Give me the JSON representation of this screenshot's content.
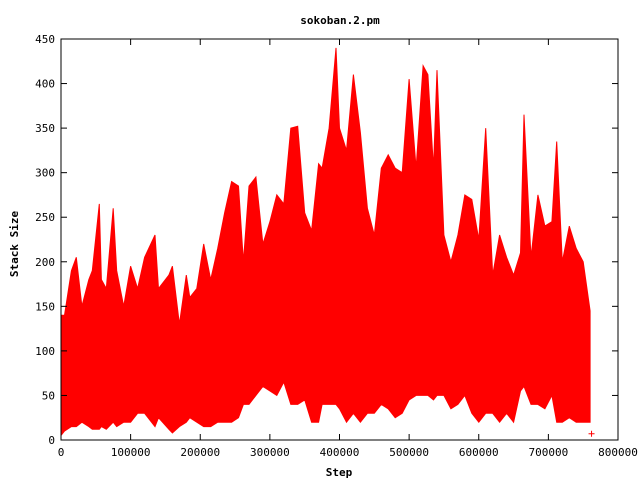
{
  "chart_data": {
    "type": "area",
    "title": "sokoban.2.pm",
    "xlabel": "Step",
    "ylabel": "Stack Size",
    "xlim": [
      0,
      800000
    ],
    "ylim": [
      0,
      450
    ],
    "x_ticks": [
      "0",
      "100000",
      "200000",
      "300000",
      "400000",
      "500000",
      "600000",
      "700000",
      "800000"
    ],
    "y_ticks": [
      "0",
      "50",
      "100",
      "150",
      "200",
      "250",
      "300",
      "350",
      "400",
      "450"
    ],
    "grid": false,
    "legend": "none",
    "series_color": "#ff0000",
    "series": [
      {
        "x": [
          0,
          5000,
          15000,
          22000,
          30000,
          40000,
          45000,
          55000,
          58000,
          65000,
          75000,
          80000,
          90000,
          100000,
          110000,
          120000,
          135000,
          140000,
          155000,
          160000,
          170000,
          180000,
          185000,
          195000,
          205000,
          215000,
          225000,
          235000,
          245000,
          255000,
          262000,
          270000,
          280000,
          290000,
          300000,
          310000,
          320000,
          330000,
          340000,
          350000,
          360000,
          370000,
          375000,
          385000,
          395000,
          400000,
          410000,
          420000,
          430000,
          440000,
          450000,
          460000,
          470000,
          480000,
          490000,
          500000,
          510000,
          520000,
          527000,
          535000,
          540000,
          550000,
          560000,
          570000,
          580000,
          590000,
          600000,
          610000,
          620000,
          630000,
          640000,
          650000,
          660000,
          665000,
          675000,
          685000,
          695000,
          705000,
          712000,
          720000,
          730000,
          740000,
          750000,
          760000
        ],
        "upper": [
          140,
          140,
          190,
          205,
          150,
          180,
          190,
          265,
          180,
          170,
          260,
          190,
          150,
          195,
          170,
          205,
          230,
          170,
          185,
          195,
          130,
          185,
          160,
          170,
          220,
          180,
          215,
          255,
          290,
          285,
          200,
          285,
          295,
          220,
          245,
          275,
          265,
          350,
          352,
          255,
          235,
          310,
          305,
          350,
          440,
          350,
          325,
          410,
          345,
          260,
          230,
          305,
          320,
          305,
          300,
          405,
          305,
          420,
          410,
          305,
          415,
          230,
          200,
          230,
          275,
          270,
          225,
          350,
          185,
          230,
          205,
          185,
          210,
          365,
          205,
          275,
          240,
          245,
          335,
          200,
          240,
          215,
          200,
          145
        ],
        "lower": [
          5,
          10,
          15,
          15,
          20,
          15,
          12,
          12,
          15,
          12,
          20,
          15,
          20,
          20,
          30,
          30,
          15,
          25,
          12,
          8,
          15,
          20,
          25,
          20,
          15,
          15,
          20,
          20,
          20,
          25,
          40,
          40,
          50,
          60,
          55,
          50,
          65,
          40,
          40,
          45,
          20,
          20,
          40,
          40,
          40,
          35,
          20,
          30,
          20,
          30,
          30,
          40,
          35,
          25,
          30,
          45,
          50,
          50,
          50,
          45,
          50,
          50,
          35,
          40,
          50,
          30,
          20,
          30,
          30,
          20,
          30,
          20,
          55,
          60,
          40,
          40,
          35,
          50,
          20,
          20,
          25,
          20,
          20,
          20
        ]
      }
    ],
    "last_point": {
      "x": 762000,
      "y": 7
    }
  }
}
